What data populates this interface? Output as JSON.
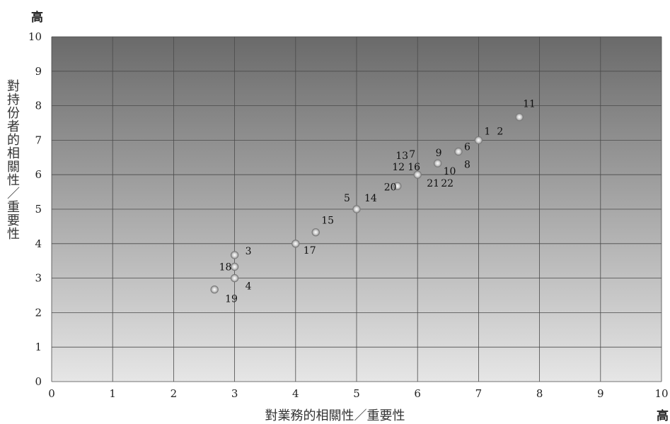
{
  "chart_data": {
    "type": "scatter",
    "xlabel": "對業務的相關性／重要性",
    "ylabel": "對持份者的相關性／重要性",
    "x_high_label": "高",
    "y_high_label": "高",
    "xlim": [
      0,
      10
    ],
    "ylim": [
      0,
      10
    ],
    "xticks": [
      0,
      1,
      2,
      3,
      4,
      5,
      6,
      7,
      8,
      9,
      10
    ],
    "yticks": [
      0,
      1,
      2,
      3,
      4,
      5,
      6,
      7,
      8,
      9,
      10
    ],
    "grid": true,
    "points": [
      {
        "x": 7.67,
        "y": 7.67
      },
      {
        "x": 7.0,
        "y": 7.0
      },
      {
        "x": 6.67,
        "y": 6.67
      },
      {
        "x": 6.33,
        "y": 6.33
      },
      {
        "x": 6.0,
        "y": 6.0
      },
      {
        "x": 5.67,
        "y": 5.67
      },
      {
        "x": 5.0,
        "y": 5.0
      },
      {
        "x": 4.33,
        "y": 4.33
      },
      {
        "x": 4.0,
        "y": 4.0
      },
      {
        "x": 3.0,
        "y": 3.67
      },
      {
        "x": 3.0,
        "y": 3.33
      },
      {
        "x": 3.0,
        "y": 3.0
      },
      {
        "x": 2.67,
        "y": 2.67
      }
    ],
    "labels": [
      {
        "text": "11",
        "x": 7.67,
        "y": 7.67
      },
      {
        "text": "1",
        "x": 7.0,
        "y": 7.0
      },
      {
        "text": "2",
        "x": 7.0,
        "y": 7.0
      },
      {
        "text": "6",
        "x": 6.67,
        "y": 6.67
      },
      {
        "text": "8",
        "x": 6.67,
        "y": 6.67
      },
      {
        "text": "9",
        "x": 6.33,
        "y": 6.33
      },
      {
        "text": "10",
        "x": 6.33,
        "y": 6.33
      },
      {
        "text": "13",
        "x": 6.0,
        "y": 6.0
      },
      {
        "text": "7",
        "x": 6.0,
        "y": 6.0
      },
      {
        "text": "12",
        "x": 6.0,
        "y": 6.0
      },
      {
        "text": "16",
        "x": 6.0,
        "y": 6.0
      },
      {
        "text": "21",
        "x": 6.0,
        "y": 6.0
      },
      {
        "text": "22",
        "x": 6.0,
        "y": 6.0
      },
      {
        "text": "20",
        "x": 5.67,
        "y": 5.67
      },
      {
        "text": "5",
        "x": 5.0,
        "y": 5.0
      },
      {
        "text": "14",
        "x": 5.0,
        "y": 5.0
      },
      {
        "text": "15",
        "x": 4.33,
        "y": 4.33
      },
      {
        "text": "17",
        "x": 4.0,
        "y": 4.0
      },
      {
        "text": "3",
        "x": 3.0,
        "y": 3.67
      },
      {
        "text": "18",
        "x": 3.0,
        "y": 3.33
      },
      {
        "text": "4",
        "x": 3.0,
        "y": 3.0
      },
      {
        "text": "19",
        "x": 2.67,
        "y": 2.67
      }
    ],
    "colors": {
      "plot_top": "#6a6a6a",
      "plot_bottom": "#e6e6e6",
      "grid": "#4a4a4a",
      "marker_fill": "#d9d9d9",
      "marker_stroke": "#7a7a7a"
    }
  }
}
